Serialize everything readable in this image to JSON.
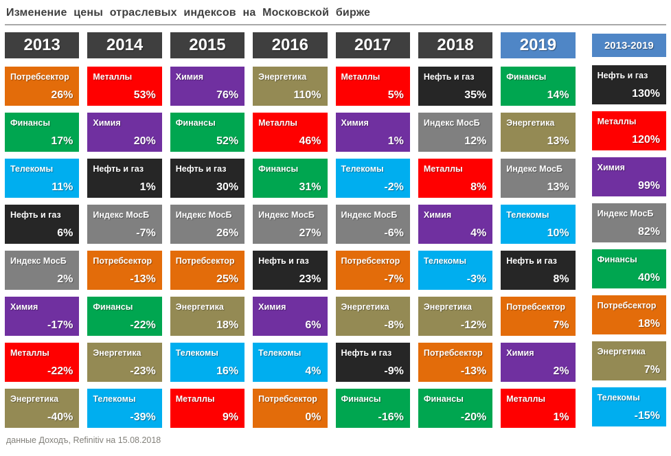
{
  "title": "Изменение цены отраслевых индексов на Московской бирже",
  "footer": "данные Доходъ, Refinitiv на 15.08.2018",
  "header_styles": {
    "default_bg": "#3f3f3f",
    "highlight_bg": "#4f86c6",
    "text": "#ffffff"
  },
  "sector_colors": {
    "Потребсектор": "#e36c0a",
    "Металлы": "#ff0000",
    "Финансы": "#00a650",
    "Химия": "#7030a0",
    "Телекомы": "#00aeef",
    "Нефть и газ": "#262626",
    "Индекс МосБ": "#808080",
    "Энергетика": "#948a54"
  },
  "columns": [
    {
      "year": "2013",
      "highlight": false,
      "summary": false,
      "cells": [
        {
          "sector": "Потребсектор",
          "value": "26%"
        },
        {
          "sector": "Финансы",
          "value": "17%"
        },
        {
          "sector": "Телекомы",
          "value": "11%"
        },
        {
          "sector": "Нефть и газ",
          "value": "6%"
        },
        {
          "sector": "Индекс МосБ",
          "value": "2%"
        },
        {
          "sector": "Химия",
          "value": "-17%"
        },
        {
          "sector": "Металлы",
          "value": "-22%"
        },
        {
          "sector": "Энергетика",
          "value": "-40%"
        }
      ]
    },
    {
      "year": "2014",
      "highlight": false,
      "summary": false,
      "cells": [
        {
          "sector": "Металлы",
          "value": "53%"
        },
        {
          "sector": "Химия",
          "value": "20%"
        },
        {
          "sector": "Нефть и газ",
          "value": "1%"
        },
        {
          "sector": "Индекс МосБ",
          "value": "-7%"
        },
        {
          "sector": "Потребсектор",
          "value": "-13%"
        },
        {
          "sector": "Финансы",
          "value": "-22%"
        },
        {
          "sector": "Энергетика",
          "value": "-23%"
        },
        {
          "sector": "Телекомы",
          "value": "-39%"
        }
      ]
    },
    {
      "year": "2015",
      "highlight": false,
      "summary": false,
      "cells": [
        {
          "sector": "Химия",
          "value": "76%"
        },
        {
          "sector": "Финансы",
          "value": "52%"
        },
        {
          "sector": "Нефть и газ",
          "value": "30%"
        },
        {
          "sector": "Индекс МосБ",
          "value": "26%"
        },
        {
          "sector": "Потребсектор",
          "value": "25%"
        },
        {
          "sector": "Энергетика",
          "value": "18%"
        },
        {
          "sector": "Телекомы",
          "value": "16%"
        },
        {
          "sector": "Металлы",
          "value": "9%"
        }
      ]
    },
    {
      "year": "2016",
      "highlight": false,
      "summary": false,
      "cells": [
        {
          "sector": "Энергетика",
          "value": "110%"
        },
        {
          "sector": "Металлы",
          "value": "46%"
        },
        {
          "sector": "Финансы",
          "value": "31%"
        },
        {
          "sector": "Индекс МосБ",
          "value": "27%"
        },
        {
          "sector": "Нефть и газ",
          "value": "23%"
        },
        {
          "sector": "Химия",
          "value": "6%"
        },
        {
          "sector": "Телекомы",
          "value": "4%"
        },
        {
          "sector": "Потребсектор",
          "value": "0%"
        }
      ]
    },
    {
      "year": "2017",
      "highlight": false,
      "summary": false,
      "cells": [
        {
          "sector": "Металлы",
          "value": "5%"
        },
        {
          "sector": "Химия",
          "value": "1%"
        },
        {
          "sector": "Телекомы",
          "value": "-2%"
        },
        {
          "sector": "Индекс МосБ",
          "value": "-6%"
        },
        {
          "sector": "Потребсектор",
          "value": "-7%"
        },
        {
          "sector": "Энергетика",
          "value": "-8%"
        },
        {
          "sector": "Нефть и газ",
          "value": "-9%"
        },
        {
          "sector": "Финансы",
          "value": "-16%"
        }
      ]
    },
    {
      "year": "2018",
      "highlight": false,
      "summary": false,
      "cells": [
        {
          "sector": "Нефть и газ",
          "value": "35%"
        },
        {
          "sector": "Индекс МосБ",
          "value": "12%"
        },
        {
          "sector": "Металлы",
          "value": "8%"
        },
        {
          "sector": "Химия",
          "value": "4%"
        },
        {
          "sector": "Телекомы",
          "value": "-3%"
        },
        {
          "sector": "Энергетика",
          "value": "-12%"
        },
        {
          "sector": "Потребсектор",
          "value": "-13%"
        },
        {
          "sector": "Финансы",
          "value": "-20%"
        }
      ]
    },
    {
      "year": "2019",
      "highlight": true,
      "summary": false,
      "cells": [
        {
          "sector": "Финансы",
          "value": "14%"
        },
        {
          "sector": "Энергетика",
          "value": "13%"
        },
        {
          "sector": "Индекс МосБ",
          "value": "13%"
        },
        {
          "sector": "Телекомы",
          "value": "10%"
        },
        {
          "sector": "Нефть и газ",
          "value": "8%"
        },
        {
          "sector": "Потребсектор",
          "value": "7%"
        },
        {
          "sector": "Химия",
          "value": "2%"
        },
        {
          "sector": "Металлы",
          "value": "1%"
        }
      ]
    },
    {
      "year": "2013-2019",
      "highlight": true,
      "summary": true,
      "cells": [
        {
          "sector": "Нефть и газ",
          "value": "130%"
        },
        {
          "sector": "Металлы",
          "value": "120%"
        },
        {
          "sector": "Химия",
          "value": "99%"
        },
        {
          "sector": "Индекс МосБ",
          "value": "82%"
        },
        {
          "sector": "Финансы",
          "value": "40%"
        },
        {
          "sector": "Потребсектор",
          "value": "18%"
        },
        {
          "sector": "Энергетика",
          "value": "7%"
        },
        {
          "sector": "Телекомы",
          "value": "-15%"
        }
      ]
    }
  ],
  "chart_data": {
    "type": "table",
    "title": "Изменение цены отраслевых индексов на Московской бирже",
    "columns": [
      "2013",
      "2014",
      "2015",
      "2016",
      "2017",
      "2018",
      "2019",
      "2013-2019"
    ],
    "series": [
      {
        "name": "Потребсектор",
        "values_pct": [
          26,
          -13,
          25,
          0,
          -7,
          -13,
          7,
          18
        ]
      },
      {
        "name": "Металлы",
        "values_pct": [
          -22,
          53,
          9,
          46,
          5,
          8,
          1,
          120
        ]
      },
      {
        "name": "Финансы",
        "values_pct": [
          17,
          -22,
          52,
          31,
          -16,
          -20,
          14,
          40
        ]
      },
      {
        "name": "Химия",
        "values_pct": [
          -17,
          20,
          76,
          6,
          1,
          4,
          2,
          99
        ]
      },
      {
        "name": "Телекомы",
        "values_pct": [
          11,
          -39,
          16,
          4,
          -2,
          -3,
          10,
          -15
        ]
      },
      {
        "name": "Нефть и газ",
        "values_pct": [
          6,
          1,
          30,
          23,
          -9,
          35,
          8,
          130
        ]
      },
      {
        "name": "Индекс МосБ",
        "values_pct": [
          2,
          -7,
          26,
          27,
          -6,
          12,
          13,
          82
        ]
      },
      {
        "name": "Энергетика",
        "values_pct": [
          -40,
          -23,
          18,
          110,
          -8,
          -12,
          13,
          7
        ]
      }
    ],
    "layout": "columns sorted by yearly return descending, heatmap-quilt of sector returns",
    "source_note": "данные Доходъ, Refinitiv на 15.08.2018"
  }
}
